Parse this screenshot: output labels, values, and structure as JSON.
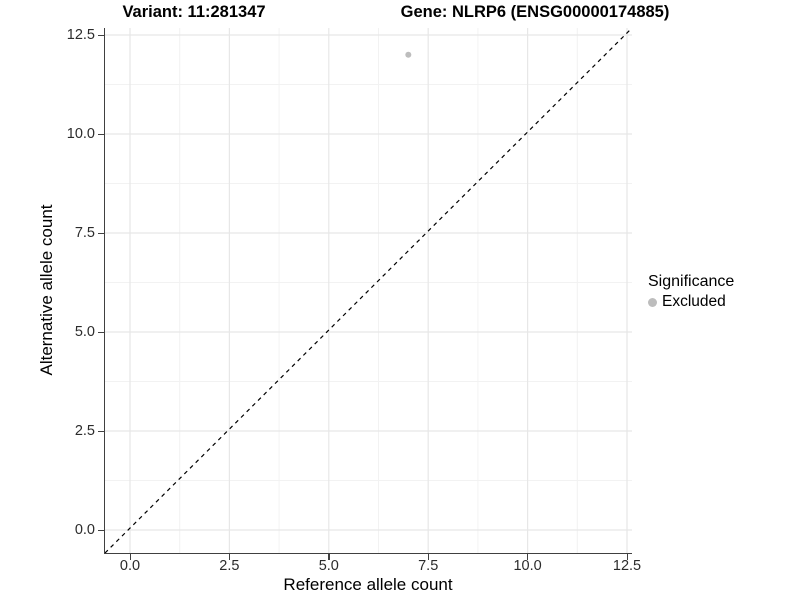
{
  "header": {
    "variant_title": "Variant: 11:281347",
    "gene_title": "Gene: NLRP6 (ENSG00000174885)"
  },
  "chart_data": {
    "type": "scatter",
    "title": "Variant: 11:281347  |  Gene: NLRP6 (ENSG00000174885)",
    "xlabel": "Reference allele count",
    "ylabel": "Alternative allele count",
    "xlim": [
      -0.63,
      12.63
    ],
    "ylim": [
      -0.58,
      12.68
    ],
    "x_ticks": [
      0,
      2.5,
      5,
      7.5,
      10,
      12.5
    ],
    "x_tick_labels": [
      "0.0",
      "2.5",
      "5.0",
      "7.5",
      "10.0",
      "12.5"
    ],
    "y_ticks": [
      0,
      2.5,
      5,
      7.5,
      10,
      12.5
    ],
    "y_tick_labels": [
      "0.0",
      "2.5",
      "5.0",
      "7.5",
      "10.0",
      "12.5"
    ],
    "x_minor_ticks": [
      1.25,
      3.75,
      6.25,
      8.75,
      11.25
    ],
    "y_minor_ticks": [
      1.25,
      3.75,
      6.25,
      8.75,
      11.25
    ],
    "grid": "major+minor",
    "legend_position": "right",
    "series": [
      {
        "name": "Excluded",
        "color": "#bdbdbd",
        "point_radius": 3,
        "points": [
          {
            "x": 7,
            "y": 12
          }
        ]
      }
    ],
    "reference_line": {
      "kind": "identity-diagonal",
      "style": "dashed",
      "color": "#000000"
    },
    "legend": {
      "title": "Significance",
      "items": [
        {
          "label": "Excluded",
          "color": "#bdbdbd"
        }
      ]
    },
    "colors": {
      "grid_major": "#e7e7e7",
      "grid_minor": "#f2f2f2",
      "axis_line": "#404040",
      "panel_background": "#ffffff"
    }
  }
}
